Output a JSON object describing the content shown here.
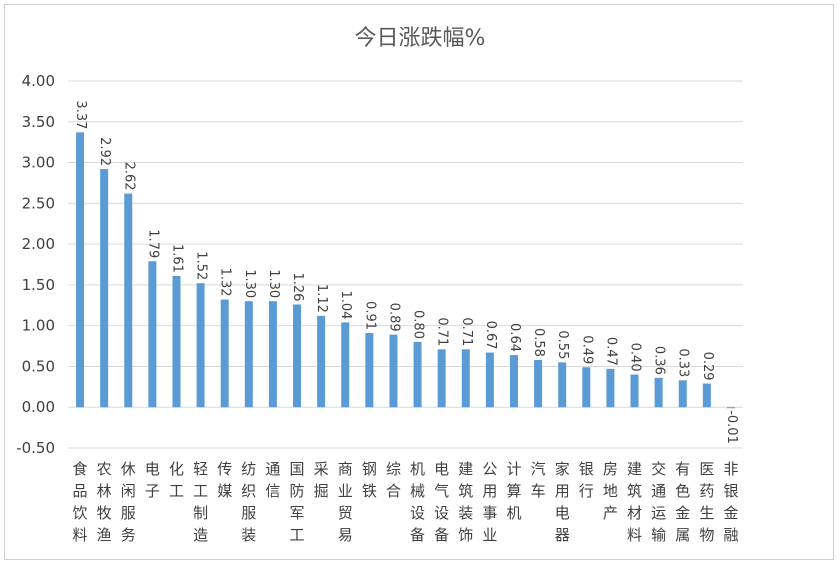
{
  "chart_data": {
    "type": "bar",
    "title": "今日涨跌幅%",
    "xlabel": "",
    "ylabel": "",
    "ylim": [
      -0.5,
      4.0
    ],
    "yticks": [
      "4.00",
      "3.50",
      "3.00",
      "2.50",
      "2.00",
      "1.50",
      "1.00",
      "0.50",
      "0.00",
      "-0.50"
    ],
    "grid": true,
    "legend": "none",
    "bar_color": "#5B9BD5",
    "categories": [
      "食品饮料",
      "农林牧渔",
      "休闲服务",
      "电子",
      "化工",
      "轻工制造",
      "传媒",
      "纺织服装",
      "通信",
      "国防军工",
      "采掘",
      "商业贸易",
      "钢铁",
      "综合",
      "机械设备",
      "电气设备",
      "建筑装饰",
      "公用事业",
      "计算机",
      "汽车",
      "家用电器",
      "银行",
      "房地产",
      "建筑材料",
      "交通运输",
      "有色金属",
      "医药生物",
      "非银金融"
    ],
    "labels": [
      "3.37",
      "2.92",
      "2.62",
      "1.79",
      "1.61",
      "1.52",
      "1.32",
      "1.30",
      "1.30",
      "1.26",
      "1.12",
      "1.04",
      "0.91",
      "0.89",
      "0.80",
      "0.71",
      "0.71",
      "0.67",
      "0.64",
      "0.58",
      "0.55",
      "0.49",
      "0.47",
      "0.40",
      "0.36",
      "0.33",
      "0.29",
      "-0.01"
    ],
    "values": [
      3.37,
      2.92,
      2.62,
      1.79,
      1.61,
      1.52,
      1.32,
      1.3,
      1.3,
      1.26,
      1.12,
      1.04,
      0.91,
      0.89,
      0.8,
      0.71,
      0.71,
      0.67,
      0.64,
      0.58,
      0.55,
      0.49,
      0.47,
      0.4,
      0.36,
      0.33,
      0.29,
      -0.01
    ]
  }
}
